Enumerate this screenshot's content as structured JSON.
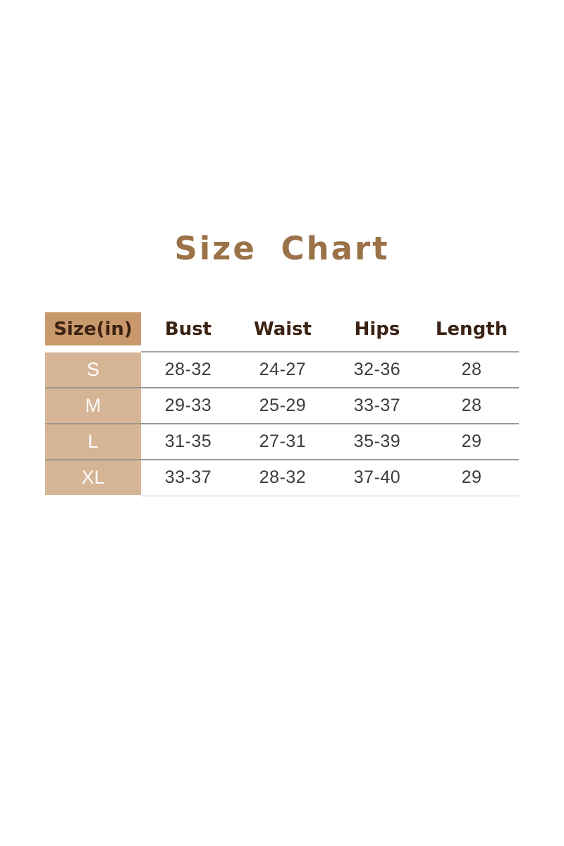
{
  "title": {
    "text": "Size Chart"
  },
  "colors": {
    "title_text": "#9b7148",
    "header_cell_bg": "#c9996b",
    "header_text": "#3b2213",
    "size_column_bg": "#d6b496",
    "size_column_text": "#ffffff",
    "data_text": "#3c3c3c",
    "row_divider": "#9c978f",
    "background": "#ffffff"
  },
  "chart_data": {
    "type": "table",
    "title": "Size Chart",
    "unit": "in",
    "columns": [
      "Size(in)",
      "Bust",
      "Waist",
      "Hips",
      "Length"
    ],
    "rows": [
      [
        "S",
        "28-32",
        "24-27",
        "32-36",
        "28"
      ],
      [
        "M",
        "29-33",
        "25-29",
        "33-37",
        "28"
      ],
      [
        "L",
        "31-35",
        "27-31",
        "35-39",
        "29"
      ],
      [
        "XL",
        "33-37",
        "28-32",
        "37-40",
        "29"
      ]
    ],
    "layout": {
      "header_highlight_column": "Size(in)",
      "grid": "horizontal-dividers-only",
      "alignment": "center"
    }
  }
}
